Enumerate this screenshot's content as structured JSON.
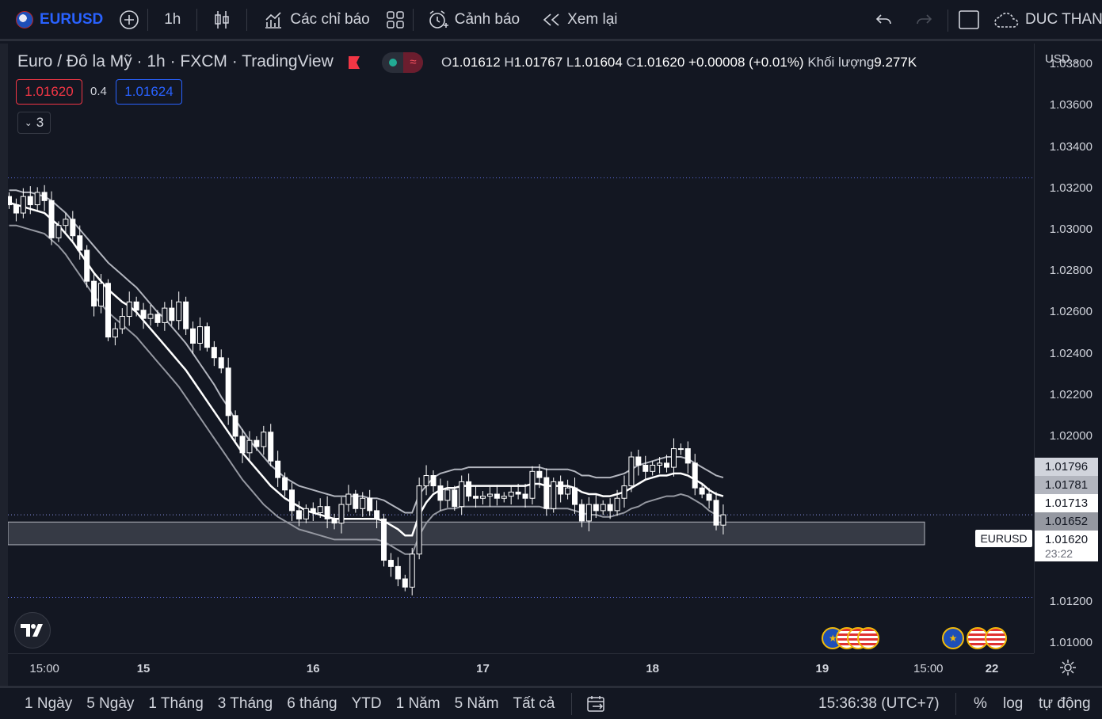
{
  "toolbar": {
    "symbol": "EURUSD",
    "interval": "1h",
    "indicators_label": "Các chỉ báo",
    "alert_label": "Cảnh báo",
    "replay_label": "Xem lại",
    "user_label": "DUC THANG"
  },
  "legend": {
    "title": "Euro / Đô la Mỹ · 1h · FXCM · TradingView",
    "o_label": "O",
    "o_value": "1.01612",
    "h_label": "H",
    "h_value": "1.01767",
    "l_label": "L",
    "l_value": "1.01604",
    "c_label": "C",
    "c_value": "1.01620",
    "change": "+0.00008 (+0.01%)",
    "volume_label": "Khối lượng",
    "volume_value": "9.277K",
    "bid": "1.01620",
    "spread": "0.4",
    "ask": "1.01624",
    "collapsed_count": "3"
  },
  "price_axis": {
    "currency": "USD",
    "tag_labels": [
      "1.01796",
      "1.01781",
      "1.01713",
      "1.01652",
      "1.01620"
    ],
    "symbol_tag": "EURUSD",
    "countdown": "23:22"
  },
  "time_axis": {
    "ticks": [
      {
        "label": "15:00",
        "t": -14
      },
      {
        "label": "15",
        "t": 0
      },
      {
        "label": "16",
        "t": 24
      },
      {
        "label": "17",
        "t": 48
      },
      {
        "label": "18",
        "t": 72
      },
      {
        "label": "19",
        "t": 96
      },
      {
        "label": "15:00",
        "t": 111
      },
      {
        "label": "22",
        "t": 120
      }
    ]
  },
  "bottom_bar": {
    "ranges": [
      "1 Ngày",
      "5 Ngày",
      "1 Tháng",
      "3 Tháng",
      "6 tháng",
      "YTD",
      "1 Năm",
      "5 Năm",
      "Tất cả"
    ],
    "clock": "15:36:38 (UTC+7)",
    "percent": "%",
    "log": "log",
    "auto": "tự động"
  },
  "colors": {
    "background": "#131722",
    "candle_up": "#ffffff",
    "candle_down": "#ffffff",
    "ema_fast": "#ffffff",
    "ema_band": "#b2b5be",
    "zone": "#5d606b",
    "bid": "#f23645",
    "ask": "#2962ff"
  },
  "chart_data": {
    "type": "candlestick",
    "symbol": "EURUSD",
    "interval": "1h",
    "ylim": [
      1.0095,
      1.039
    ],
    "y_ticks": [
      1.01,
      1.012,
      1.014,
      1.016,
      1.018,
      1.02,
      1.022,
      1.024,
      1.026,
      1.028,
      1.03,
      1.032,
      1.034,
      1.036,
      1.038
    ],
    "y_tick_labels": [
      "1.01000",
      "1.01200",
      "",
      "",
      "",
      "1.02000",
      "1.02200",
      "1.02400",
      "1.02600",
      "1.02800",
      "1.03000",
      "1.03200",
      "1.03400",
      "1.03600",
      "1.03800"
    ],
    "current_price": 1.0162,
    "support_zone": [
      1.01475,
      1.01585
    ],
    "close": [
      1.0312,
      1.0308,
      1.0316,
      1.0312,
      1.0318,
      1.0314,
      1.0296,
      1.0302,
      1.0305,
      1.0297,
      1.029,
      1.0275,
      1.0263,
      1.0274,
      1.0248,
      1.0252,
      1.0258,
      1.0265,
      1.0261,
      1.0257,
      1.0259,
      1.0255,
      1.0262,
      1.0256,
      1.0265,
      1.0252,
      1.0245,
      1.0253,
      1.0243,
      1.0238,
      1.0233,
      1.021,
      1.02,
      1.0192,
      1.0198,
      1.0195,
      1.0202,
      1.0188,
      1.018,
      1.0174,
      1.0164,
      1.016,
      1.0165,
      1.0163,
      1.0166,
      1.016,
      1.0158,
      1.0167,
      1.0172,
      1.0165,
      1.017,
      1.0164,
      1.016,
      1.014,
      1.0137,
      1.0131,
      1.0127,
      1.0143,
      1.0176,
      1.0181,
      1.0176,
      1.0169,
      1.0174,
      1.0166,
      1.0178,
      1.0171,
      1.017,
      1.0171,
      1.0172,
      1.017,
      1.0171,
      1.0173,
      1.0172,
      1.017,
      1.0183,
      1.018,
      1.0165,
      1.0178,
      1.0172,
      1.0175,
      1.0167,
      1.0159,
      1.0167,
      1.0164,
      1.0167,
      1.0164,
      1.017,
      1.0176,
      1.019,
      1.0186,
      1.0183,
      1.0186,
      1.0187,
      1.0185,
      1.0194,
      1.0194,
      1.0187,
      1.0175,
      1.0172,
      1.0169,
      1.0157,
      1.0162
    ],
    "ema_fast": [
      1.0313,
      1.0312,
      1.0311,
      1.031,
      1.0309,
      1.0308,
      1.0305,
      1.0302,
      1.0298,
      1.0294,
      1.0289,
      1.0284,
      1.0279,
      1.0275,
      1.0271,
      1.0268,
      1.0265,
      1.0263,
      1.026,
      1.0256,
      1.0252,
      1.0248,
      1.0244,
      1.024,
      1.0236,
      1.0232,
      1.0227,
      1.0222,
      1.0217,
      1.0212,
      1.0207,
      1.0202,
      1.0197,
      1.0192,
      1.0188,
      1.0184,
      1.018,
      1.0176,
      1.0173,
      1.017,
      1.0168,
      1.0166,
      1.0164,
      1.0163,
      1.0162,
      1.0161,
      1.016,
      1.016,
      1.016,
      1.016,
      1.016,
      1.016,
      1.016,
      1.0159,
      1.0157,
      1.0155,
      1.0152,
      1.0152,
      1.0162,
      1.0168,
      1.0172,
      1.0174,
      1.0175,
      1.0175,
      1.0176,
      1.0176,
      1.0176,
      1.0176,
      1.0176,
      1.0176,
      1.0176,
      1.0176,
      1.0176,
      1.0176,
      1.0177,
      1.0177,
      1.0176,
      1.0176,
      1.0176,
      1.0176,
      1.0175,
      1.0173,
      1.0172,
      1.0172,
      1.0171,
      1.0171,
      1.0172,
      1.0173,
      1.0175,
      1.0177,
      1.0179,
      1.018,
      1.0181,
      1.0181,
      1.0182,
      1.0182,
      1.0181,
      1.0179,
      1.0177,
      1.0174,
      1.0172,
      1.0171
    ],
    "ema_upper": [
      1.0319,
      1.0319,
      1.0318,
      1.0318,
      1.0317,
      1.0316,
      1.0314,
      1.0311,
      1.0308,
      1.0304,
      1.03,
      1.0296,
      1.0292,
      1.0288,
      1.0284,
      1.0281,
      1.0278,
      1.0275,
      1.0272,
      1.0268,
      1.0264,
      1.026,
      1.0257,
      1.0253,
      1.0249,
      1.0245,
      1.024,
      1.0235,
      1.023,
      1.0225,
      1.0219,
      1.0214,
      1.0208,
      1.0203,
      1.0198,
      1.0194,
      1.019,
      1.0186,
      1.0183,
      1.018,
      1.0178,
      1.0176,
      1.0175,
      1.0174,
      1.0173,
      1.0172,
      1.0171,
      1.0171,
      1.0171,
      1.0171,
      1.0171,
      1.017,
      1.017,
      1.0169,
      1.0167,
      1.0165,
      1.0163,
      1.0163,
      1.0172,
      1.0176,
      1.018,
      1.0182,
      1.0183,
      1.0184,
      1.0184,
      1.0185,
      1.0185,
      1.0185,
      1.0185,
      1.0185,
      1.0185,
      1.0185,
      1.0185,
      1.0185,
      1.0185,
      1.0185,
      1.0184,
      1.0184,
      1.0184,
      1.0184,
      1.0183,
      1.0181,
      1.0181,
      1.018,
      1.018,
      1.018,
      1.0181,
      1.0182,
      1.0184,
      1.0186,
      1.0187,
      1.0188,
      1.0189,
      1.019,
      1.019,
      1.019,
      1.0189,
      1.0187,
      1.0185,
      1.0183,
      1.0181,
      1.018
    ],
    "ema_lower": [
      1.0302,
      1.0302,
      1.0301,
      1.03,
      1.0299,
      1.0298,
      1.0295,
      1.0292,
      1.0288,
      1.0283,
      1.0278,
      1.0273,
      1.0268,
      1.0264,
      1.026,
      1.0257,
      1.0254,
      1.0251,
      1.0248,
      1.0244,
      1.024,
      1.0236,
      1.0232,
      1.0228,
      1.0224,
      1.0219,
      1.0214,
      1.0209,
      1.0204,
      1.0199,
      1.0194,
      1.0189,
      1.0184,
      1.0179,
      1.0175,
      1.0171,
      1.0167,
      1.0164,
      1.0161,
      1.0159,
      1.0157,
      1.0155,
      1.0154,
      1.0153,
      1.0152,
      1.0151,
      1.015,
      1.015,
      1.015,
      1.015,
      1.015,
      1.015,
      1.015,
      1.0149,
      1.0147,
      1.0145,
      1.0143,
      1.0143,
      1.0152,
      1.0158,
      1.0162,
      1.0164,
      1.0165,
      1.0165,
      1.0166,
      1.0166,
      1.0166,
      1.0166,
      1.0166,
      1.0166,
      1.0166,
      1.0166,
      1.0166,
      1.0166,
      1.0166,
      1.0166,
      1.0165,
      1.0165,
      1.0165,
      1.0165,
      1.0164,
      1.0163,
      1.0162,
      1.0162,
      1.0161,
      1.0161,
      1.0162,
      1.0163,
      1.0165,
      1.0166,
      1.0168,
      1.0169,
      1.017,
      1.0171,
      1.0171,
      1.0172,
      1.0171,
      1.0169,
      1.0167,
      1.0164,
      1.0162,
      1.0161
    ],
    "events": [
      {
        "t": 97.5,
        "type": "eu"
      },
      {
        "t": 99.5,
        "type": "us"
      },
      {
        "t": 101,
        "type": "us"
      },
      {
        "t": 102.5,
        "type": "us"
      },
      {
        "t": 114.5,
        "type": "eu"
      },
      {
        "t": 118,
        "type": "us"
      },
      {
        "t": 120.5,
        "type": "us"
      }
    ]
  }
}
